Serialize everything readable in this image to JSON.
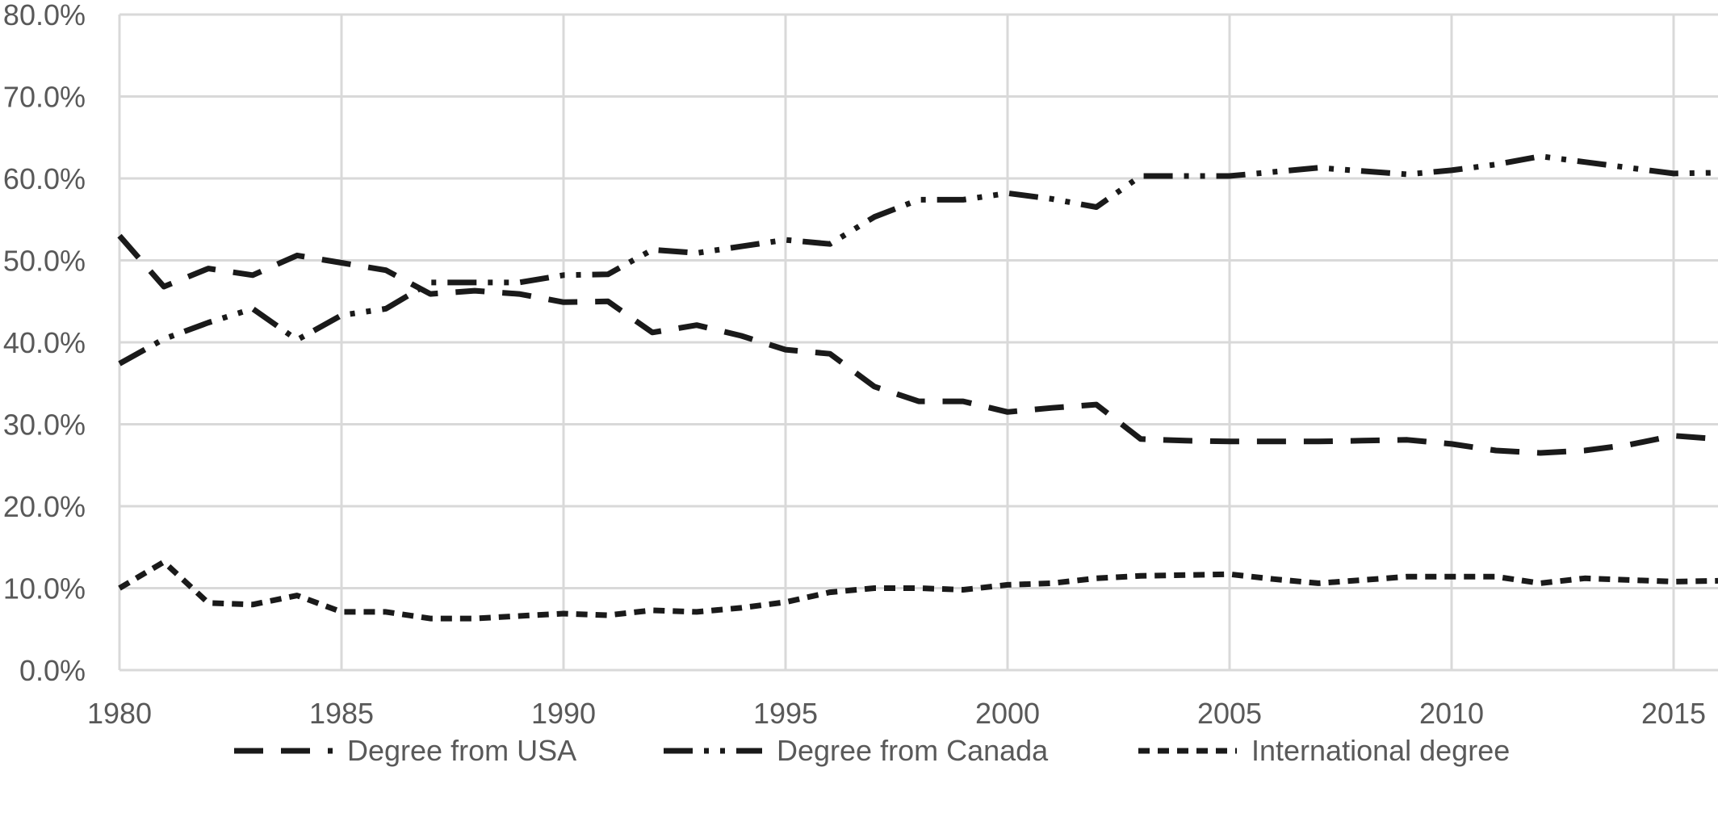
{
  "chart_data": {
    "type": "line",
    "title": "",
    "xlabel": "",
    "ylabel": "",
    "x": [
      1980,
      1981,
      1982,
      1983,
      1984,
      1985,
      1986,
      1987,
      1988,
      1989,
      1990,
      1991,
      1992,
      1993,
      1994,
      1995,
      1996,
      1997,
      1998,
      1999,
      2000,
      2001,
      2002,
      2003,
      2004,
      2005,
      2006,
      2007,
      2008,
      2009,
      2010,
      2011,
      2012,
      2013,
      2014,
      2015,
      2016
    ],
    "xlim": [
      1980,
      2016
    ],
    "ylim": [
      0,
      80
    ],
    "x_ticks": [
      "1980",
      "1985",
      "1990",
      "1995",
      "2000",
      "2005",
      "2010",
      "2015"
    ],
    "y_ticks": [
      "0.0%",
      "10.0%",
      "20.0%",
      "30.0%",
      "40.0%",
      "50.0%",
      "60.0%",
      "70.0%",
      "80.0%"
    ],
    "grid": true,
    "legend_position": "bottom",
    "series": [
      {
        "name": "Degree from USA",
        "style": "long-dash",
        "color": "#1a1a1a",
        "values": [
          53.0,
          46.8,
          49.0,
          48.2,
          50.6,
          49.7,
          48.8,
          45.9,
          46.3,
          45.9,
          44.9,
          45.0,
          41.2,
          42.1,
          40.8,
          39.1,
          38.6,
          34.6,
          32.8,
          32.8,
          31.5,
          32.0,
          32.4,
          28.2,
          28.0,
          27.9,
          27.9,
          27.9,
          28.0,
          28.1,
          27.6,
          26.8,
          26.5,
          26.8,
          27.5,
          28.6,
          28.2
        ]
      },
      {
        "name": "Degree from Canada",
        "style": "dash-dot-dot",
        "color": "#1a1a1a",
        "values": [
          37.4,
          40.4,
          42.4,
          44.1,
          40.3,
          43.3,
          44.1,
          47.3,
          47.3,
          47.3,
          48.2,
          48.3,
          51.3,
          50.9,
          51.7,
          52.5,
          52.0,
          55.3,
          57.4,
          57.4,
          58.2,
          57.5,
          56.5,
          60.3,
          60.3,
          60.3,
          60.8,
          61.3,
          60.9,
          60.5,
          61.0,
          61.7,
          62.7,
          62.0,
          61.3,
          60.6,
          60.7
        ]
      },
      {
        "name": "International degree",
        "style": "short-dash",
        "color": "#1a1a1a",
        "values": [
          10.0,
          13.2,
          8.2,
          8.0,
          9.1,
          7.1,
          7.1,
          6.3,
          6.3,
          6.6,
          6.9,
          6.7,
          7.3,
          7.1,
          7.6,
          8.3,
          9.5,
          10.0,
          10.0,
          9.8,
          10.4,
          10.6,
          11.2,
          11.5,
          11.6,
          11.7,
          11.1,
          10.6,
          11.0,
          11.4,
          11.4,
          11.4,
          10.6,
          11.2,
          11.0,
          10.8,
          10.9
        ]
      }
    ]
  }
}
